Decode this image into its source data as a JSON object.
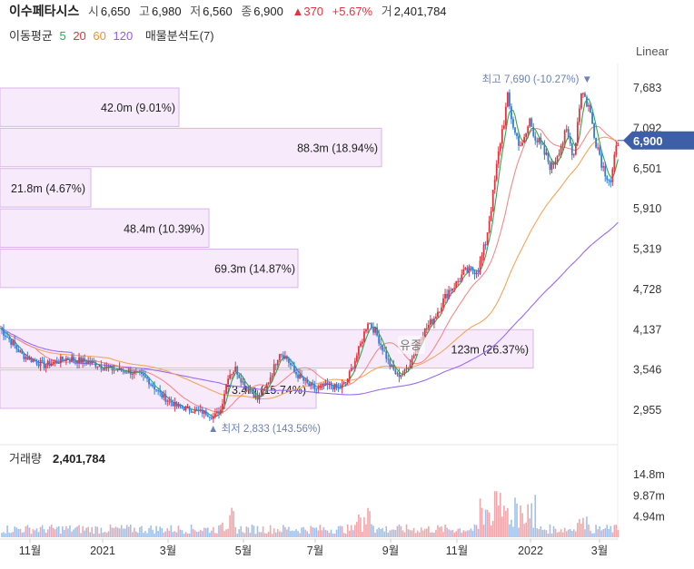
{
  "header": {
    "name": "이수페타시스",
    "open_label": "시",
    "open": "6,650",
    "high_label": "고",
    "high": "6,980",
    "low_label": "저",
    "low": "6,560",
    "close_label": "종",
    "close": "6,900",
    "change": "▲370",
    "change_pct": "+5.67%",
    "volume_label": "거",
    "volume": "2,401,784"
  },
  "ma_legend": {
    "title": "이동평균",
    "periods": [
      {
        "label": "5",
        "color": "#2fa84f"
      },
      {
        "label": "20",
        "color": "#e5323e"
      },
      {
        "label": "60",
        "color": "#f0922b"
      },
      {
        "label": "120",
        "color": "#8b5cf6"
      }
    ],
    "volume_profile_label": "매물분석도(7)"
  },
  "scale_button": "Linear",
  "colors": {
    "up": "#e5323e",
    "down": "#2f7fd8",
    "ma5": "#2fa84f",
    "ma20": "#f28a8a",
    "ma60": "#f2a65a",
    "ma120": "#9a6bf0",
    "profile_fill": "#f7ebfb",
    "profile_stroke": "#d9b3ec",
    "price_tag": "#3f5ea8"
  },
  "chart_data": {
    "type": "candlestick",
    "price_axis_ticks": [
      "7,683",
      "7,092",
      "6,501",
      "5,910",
      "5,319",
      "4,728",
      "4,137",
      "3,546",
      "2,955"
    ],
    "price_axis_values": [
      7683,
      7092,
      6501,
      5910,
      5319,
      4728,
      4137,
      3546,
      2955
    ],
    "current_price_label": "6,900",
    "current_price": 6900,
    "x_axis_labels": [
      "11월",
      "2021",
      "3월",
      "5월",
      "7월",
      "9월",
      "11월",
      "2022",
      "3월"
    ],
    "price_series_approx": [
      [
        0,
        4150
      ],
      [
        6,
        3750
      ],
      [
        12,
        3600
      ],
      [
        18,
        3700
      ],
      [
        24,
        3650
      ],
      [
        30,
        3550
      ],
      [
        36,
        3500
      ],
      [
        40,
        3400
      ],
      [
        44,
        3150
      ],
      [
        48,
        3000
      ],
      [
        52,
        2950
      ],
      [
        56,
        2900
      ],
      [
        58,
        2840
      ],
      [
        60,
        2950
      ],
      [
        62,
        3450
      ],
      [
        64,
        3550
      ],
      [
        66,
        3350
      ],
      [
        68,
        3250
      ],
      [
        70,
        3100
      ],
      [
        72,
        3250
      ],
      [
        74,
        3500
      ],
      [
        76,
        3800
      ],
      [
        78,
        3700
      ],
      [
        80,
        3500
      ],
      [
        82,
        3400
      ],
      [
        84,
        3300
      ],
      [
        86,
        3250
      ],
      [
        88,
        3300
      ],
      [
        90,
        3300
      ],
      [
        92,
        3250
      ],
      [
        94,
        3350
      ],
      [
        96,
        3600
      ],
      [
        98,
        3900
      ],
      [
        100,
        4250
      ],
      [
        102,
        4100
      ],
      [
        104,
        3850
      ],
      [
        106,
        3600
      ],
      [
        108,
        3450
      ],
      [
        110,
        3500
      ],
      [
        112,
        3700
      ],
      [
        114,
        4000
      ],
      [
        116,
        4150
      ],
      [
        118,
        4300
      ],
      [
        120,
        4500
      ],
      [
        122,
        4700
      ],
      [
        124,
        4800
      ],
      [
        126,
        4950
      ],
      [
        128,
        5000
      ],
      [
        130,
        5000
      ],
      [
        132,
        5400
      ],
      [
        134,
        6100
      ],
      [
        136,
        6900
      ],
      [
        138,
        7500
      ],
      [
        140,
        7000
      ],
      [
        142,
        6800
      ],
      [
        144,
        7200
      ],
      [
        146,
        6900
      ],
      [
        148,
        6700
      ],
      [
        150,
        6500
      ],
      [
        152,
        6800
      ],
      [
        154,
        7000
      ],
      [
        156,
        6700
      ],
      [
        158,
        7650
      ],
      [
        160,
        7400
      ],
      [
        162,
        6900
      ],
      [
        164,
        6500
      ],
      [
        166,
        6300
      ],
      [
        168,
        6900
      ]
    ],
    "volume_profile": [
      {
        "label": "42.0m (9.01%)",
        "price_low": 7092,
        "price_high": 7683,
        "share_pct": 9.01
      },
      {
        "label": "88.3m (18.94%)",
        "price_low": 6501,
        "price_high": 7092,
        "share_pct": 18.94
      },
      {
        "label": "21.8m (4.67%)",
        "price_low": 5910,
        "price_high": 6501,
        "share_pct": 4.67
      },
      {
        "label": "48.4m (10.39%)",
        "price_low": 5319,
        "price_high": 5910,
        "share_pct": 10.39
      },
      {
        "label": "69.3m (14.87%)",
        "price_low": 4728,
        "price_high": 5319,
        "share_pct": 14.87
      },
      {
        "label": "123m (26.37%)",
        "price_low": 3546,
        "price_high": 4137,
        "share_pct": 26.37
      },
      {
        "label": "73.4m (15.74%)",
        "price_low": 2955,
        "price_high": 3546,
        "share_pct": 15.74
      }
    ],
    "annotations": {
      "high": "최고 7,690 (-10.27%)",
      "low": "최저 2,833 (143.56%)",
      "overlay": "유종"
    },
    "volume": {
      "title": "거래량",
      "value": "2,401,784",
      "axis_ticks": [
        "14.8m",
        "9.87m",
        "4.94m"
      ],
      "axis_values": [
        14.8,
        9.87,
        4.94
      ]
    }
  }
}
